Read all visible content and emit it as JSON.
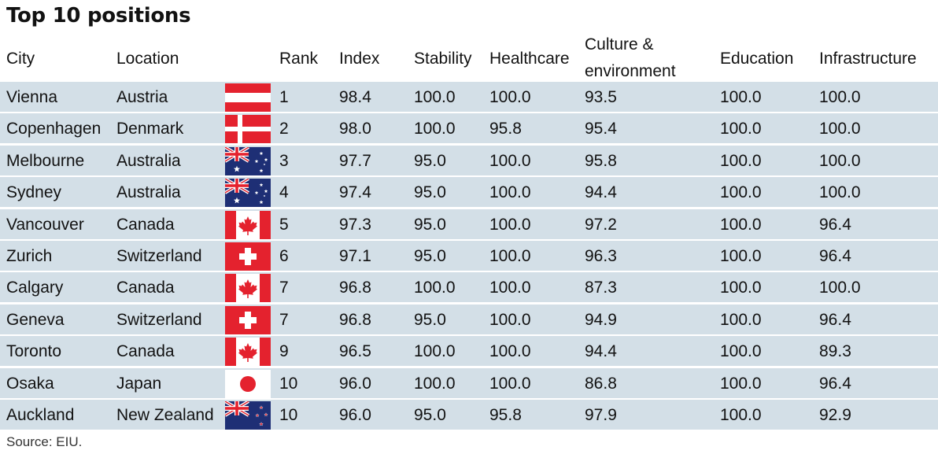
{
  "title": "Top 10 positions",
  "source": "Source: EIU.",
  "chart_data": {
    "type": "table",
    "columns": [
      "City",
      "Location",
      "Rank",
      "Index",
      "Stability",
      "Healthcare",
      "Culture & environment",
      "Education",
      "Infrastructure"
    ],
    "headers": {
      "city": "City",
      "location": "Location",
      "rank": "Rank",
      "index": "Index",
      "stability": "Stability",
      "healthcare": "Healthcare",
      "culture_line1": "Culture &",
      "culture_line2": "environment",
      "education": "Education",
      "infrastructure": "Infrastructure"
    },
    "rows": [
      {
        "city": "Vienna",
        "location": "Austria",
        "flag": "austria",
        "rank": "1",
        "index": "98.4",
        "stability": "100.0",
        "healthcare": "100.0",
        "culture": "93.5",
        "education": "100.0",
        "infrastructure": "100.0"
      },
      {
        "city": "Copenhagen",
        "location": "Denmark",
        "flag": "denmark",
        "rank": "2",
        "index": "98.0",
        "stability": "100.0",
        "healthcare": "95.8",
        "culture": "95.4",
        "education": "100.0",
        "infrastructure": "100.0"
      },
      {
        "city": "Melbourne",
        "location": "Australia",
        "flag": "australia",
        "rank": "3",
        "index": "97.7",
        "stability": "95.0",
        "healthcare": "100.0",
        "culture": "95.8",
        "education": "100.0",
        "infrastructure": "100.0"
      },
      {
        "city": "Sydney",
        "location": "Australia",
        "flag": "australia",
        "rank": "4",
        "index": "97.4",
        "stability": "95.0",
        "healthcare": "100.0",
        "culture": "94.4",
        "education": "100.0",
        "infrastructure": "100.0"
      },
      {
        "city": "Vancouver",
        "location": "Canada",
        "flag": "canada",
        "rank": "5",
        "index": "97.3",
        "stability": "95.0",
        "healthcare": "100.0",
        "culture": "97.2",
        "education": "100.0",
        "infrastructure": "96.4"
      },
      {
        "city": "Zurich",
        "location": "Switzerland",
        "flag": "switzerland",
        "rank": "6",
        "index": "97.1",
        "stability": "95.0",
        "healthcare": "100.0",
        "culture": "96.3",
        "education": "100.0",
        "infrastructure": "96.4"
      },
      {
        "city": "Calgary",
        "location": "Canada",
        "flag": "canada",
        "rank": "7",
        "index": "96.8",
        "stability": "100.0",
        "healthcare": "100.0",
        "culture": "87.3",
        "education": "100.0",
        "infrastructure": "100.0"
      },
      {
        "city": "Geneva",
        "location": "Switzerland",
        "flag": "switzerland",
        "rank": "7",
        "index": "96.8",
        "stability": "95.0",
        "healthcare": "100.0",
        "culture": "94.9",
        "education": "100.0",
        "infrastructure": "96.4"
      },
      {
        "city": "Toronto",
        "location": "Canada",
        "flag": "canada",
        "rank": "9",
        "index": "96.5",
        "stability": "100.0",
        "healthcare": "100.0",
        "culture": "94.4",
        "education": "100.0",
        "infrastructure": "89.3"
      },
      {
        "city": "Osaka",
        "location": "Japan",
        "flag": "japan",
        "rank": "10",
        "index": "96.0",
        "stability": "100.0",
        "healthcare": "100.0",
        "culture": "86.8",
        "education": "100.0",
        "infrastructure": "96.4"
      },
      {
        "city": "Auckland",
        "location": "New Zealand",
        "flag": "new-zealand",
        "rank": "10",
        "index": "96.0",
        "stability": "95.0",
        "healthcare": "95.8",
        "culture": "97.9",
        "education": "100.0",
        "infrastructure": "92.9"
      }
    ]
  },
  "colors": {
    "row_background": "#d3dfe7",
    "row_separator": "#ffffff",
    "flag_red": "#e4222e",
    "flag_blue": "#1e2f75"
  }
}
